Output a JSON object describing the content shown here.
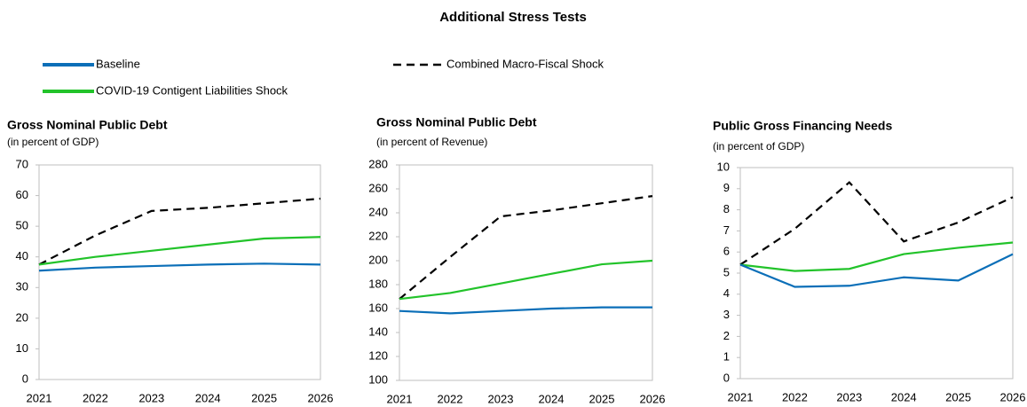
{
  "title": "Additional Stress Tests",
  "chart_data": [
    {
      "type": "line",
      "title": "Gross Nominal Public Debt",
      "subtitle": "(in percent of GDP)",
      "categories": [
        "2021",
        "2022",
        "2023",
        "2024",
        "2025",
        "2026"
      ],
      "ylim": [
        0,
        70
      ],
      "yticks": [
        0,
        10,
        20,
        30,
        40,
        50,
        60,
        70
      ],
      "series": [
        {
          "name": "Baseline",
          "color": "#0b6fb8",
          "dash": false,
          "values": [
            35.5,
            36.5,
            37,
            37.5,
            37.8,
            37.5
          ]
        },
        {
          "name": "Combined Macro-Fiscal Shock",
          "color": "#000000",
          "dash": true,
          "values": [
            37.5,
            47,
            55,
            56,
            57.5,
            59
          ]
        },
        {
          "name": "COVID-19 Contigent Liabilities Shock",
          "color": "#22c32a",
          "dash": false,
          "values": [
            37.5,
            40,
            42,
            44,
            46,
            46.5
          ]
        }
      ]
    },
    {
      "type": "line",
      "title": "Gross Nominal Public Debt",
      "subtitle": "(in percent of Revenue)",
      "categories": [
        "2021",
        "2022",
        "2023",
        "2024",
        "2025",
        "2026"
      ],
      "ylim": [
        100,
        280
      ],
      "yticks": [
        100,
        120,
        140,
        160,
        180,
        200,
        220,
        240,
        260,
        280
      ],
      "series": [
        {
          "color": "#0b6fb8",
          "dash": false,
          "values": [
            158,
            156,
            158,
            160,
            161,
            161
          ]
        },
        {
          "color": "#000000",
          "dash": true,
          "values": [
            168,
            203,
            237,
            242,
            248,
            254
          ]
        },
        {
          "color": "#22c32a",
          "dash": false,
          "values": [
            168,
            173,
            181,
            189,
            197,
            200
          ]
        }
      ]
    },
    {
      "type": "line",
      "title": "Public Gross Financing Needs",
      "subtitle": "(in percent of GDP)",
      "categories": [
        "2021",
        "2022",
        "2023",
        "2024",
        "2025",
        "2026"
      ],
      "ylim": [
        0,
        10
      ],
      "yticks": [
        0,
        1,
        2,
        3,
        4,
        5,
        6,
        7,
        8,
        9,
        10
      ],
      "series": [
        {
          "color": "#0b6fb8",
          "dash": false,
          "values": [
            5.4,
            4.35,
            4.4,
            4.8,
            4.65,
            5.9
          ]
        },
        {
          "color": "#000000",
          "dash": true,
          "values": [
            5.4,
            7.1,
            9.3,
            6.5,
            7.4,
            8.6
          ]
        },
        {
          "color": "#22c32a",
          "dash": false,
          "values": [
            5.4,
            5.1,
            5.2,
            5.9,
            6.2,
            6.45
          ]
        }
      ]
    }
  ]
}
